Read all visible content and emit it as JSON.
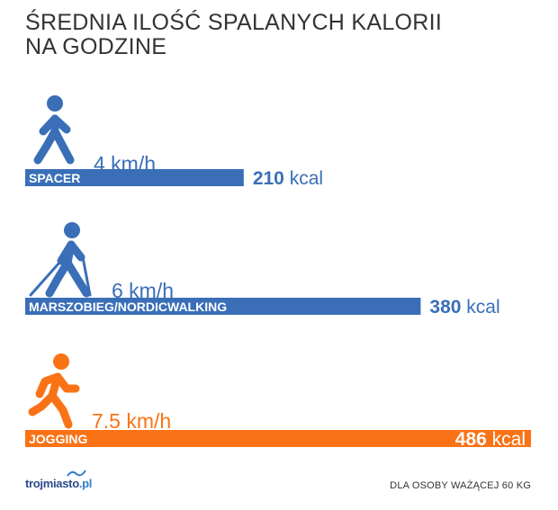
{
  "title": {
    "line1": "ŚREDNIA ILOŚĆ SPALANYCH KALORII",
    "line2": "NA GODZINE"
  },
  "chart_data": {
    "type": "bar",
    "orientation": "horizontal",
    "categories": [
      "SPACER",
      "MARSZOBIEG/NORDICWALKING",
      "JOGGING"
    ],
    "speeds": [
      "4 km/h",
      "6 km/h",
      "7.5 km/h"
    ],
    "values": [
      210,
      380,
      486
    ],
    "unit": "kcal",
    "colors": [
      "#3a6fb8",
      "#3a6fb8",
      "#f97316"
    ],
    "icons": [
      "walking-person-icon",
      "nordic-walking-person-icon",
      "running-person-icon"
    ]
  },
  "footer": {
    "logo_main": "trojmiasto",
    "logo_suffix": ".pl",
    "note": "DLA OSOBY WAŻĄCEJ 60 KG"
  }
}
